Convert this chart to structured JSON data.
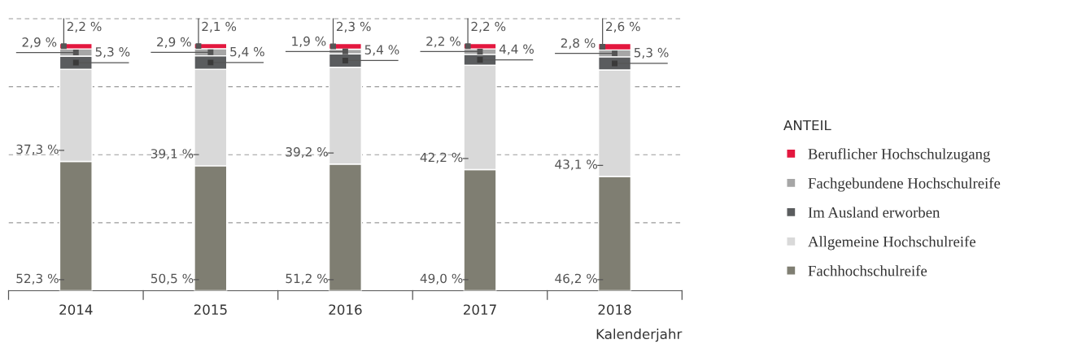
{
  "chart_data": {
    "type": "bar",
    "stacked": true,
    "categories": [
      "2014",
      "2015",
      "2016",
      "2017",
      "2018"
    ],
    "xlabel": "Kalenderjahr",
    "legend_title": "ANTEIL",
    "legend": "right",
    "grid": "y",
    "yticks": [
      {
        "value": 27.5,
        "label": null
      },
      {
        "value": 55,
        "label": null
      },
      {
        "value": 82.5,
        "label": null
      },
      {
        "value": 110,
        "label": null
      }
    ],
    "series": [
      {
        "name": "Fachhochschulreife",
        "color": "#7f7e72",
        "values": [
          52.3,
          50.5,
          51.2,
          49.0,
          46.2
        ],
        "value_labels": [
          "52,3 %",
          "50,5 %",
          "51,2 %",
          "49,0 %",
          "46,2 %"
        ]
      },
      {
        "name": "Allgemeine Hochschulreife",
        "color": "#d9d9d9",
        "values": [
          37.3,
          39.1,
          39.2,
          42.2,
          43.1
        ],
        "value_labels": [
          "37,3 %",
          "39,1 %",
          "39,2 %",
          "42,2 %",
          "43,1 %"
        ]
      },
      {
        "name": "Im Ausland erworben",
        "color": "#5a5c5e",
        "values": [
          5.3,
          5.4,
          5.4,
          4.4,
          5.3
        ],
        "value_labels": [
          "5,3 %",
          "5,4 %",
          "5,4 %",
          "4,4 %",
          "5,3 %"
        ]
      },
      {
        "name": "Fachgebundene Hochschulreife",
        "color": "#a6a6a6",
        "values": [
          2.9,
          2.9,
          1.9,
          2.2,
          2.8
        ],
        "value_labels": [
          "2,9 %",
          "2,9 %",
          "1,9 %",
          "2,2 %",
          "2,8 %"
        ]
      },
      {
        "name": "Beruflicher Hochschulzugang",
        "color": "#e3173e",
        "values": [
          2.2,
          2.1,
          2.3,
          2.2,
          2.6
        ],
        "value_labels": [
          "2,2 %",
          "2,1 %",
          "2,3 %",
          "2,2 %",
          "2,6 %"
        ]
      }
    ]
  }
}
